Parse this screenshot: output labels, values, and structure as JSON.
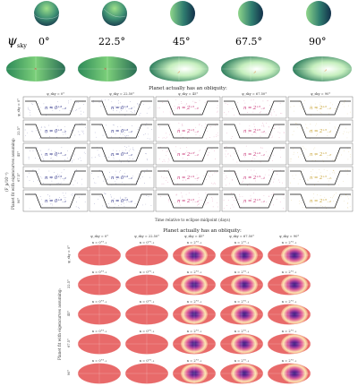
{
  "figure": {
    "psi_label": "ψ",
    "psi_subscript": "sky",
    "angle_labels": [
      "0°",
      "22.5°",
      "45°",
      "67.5°",
      "90°"
    ],
    "header_obliquity": "Planet actually has an obliquity:",
    "row_axis_label": "Planet fit with eigencurves assuming:",
    "flux_axis_label": "(F_p/10⁻³)",
    "time_axis_label": "Time relative to eclipse midpoint (days)",
    "col_headers": [
      "ψ_sky = 0°",
      "ψ_sky = 22.50°",
      "ψ_sky = 45°",
      "ψ_sky = 67.50°",
      "ψ_sky = 90°"
    ],
    "row_headers": [
      "ψ_sky = 0°",
      "22.5°",
      "45°",
      "67.5°",
      "90°"
    ],
    "lc_n_values": [
      [
        "n = 0⁺³₋₂",
        "n = 0⁺³₋₂",
        "n = 2⁺⁵₋₂",
        "n = 2⁺⁵₋₂",
        "n = 2⁺⁵₋₂"
      ],
      [
        "n = 0⁺³₋₂",
        "n = 0⁺³₋₂",
        "n = 2⁺⁵₋₂",
        "n = 2⁺⁵₋₂",
        "n = 2⁺⁵₋₂"
      ],
      [
        "n = 0⁺³₋₂",
        "n = 0⁺³₋₂",
        "n = 2⁺⁵₋₂",
        "n = 2⁺⁵₋₂",
        "n = 2⁺⁵₋₂"
      ],
      [
        "n = 0⁺³₋₂",
        "n = 0⁺³₋₂",
        "n = 2⁺⁵₋₂",
        "n = 2⁺⁵₋₂",
        "n = 2⁺⁵₋₂"
      ],
      [
        "n = 0⁺³₋₂",
        "n = 0⁺³₋₂",
        "n = 2⁺⁵₋₂",
        "n = 2⁺⁵₋₂",
        "n = 2⁺⁵₋₂"
      ]
    ],
    "map_n_values": [
      [
        "n = 0⁺³₋₂",
        "n = 0⁺³₋₂",
        "n = 2⁺⁵₋₂",
        "n = 2⁺⁵₋₂",
        "n = 2⁺⁵₋₂"
      ],
      [
        "n = 0⁺³₋₂",
        "n = 0⁺³₋₂",
        "n = 2⁺⁵₋₂",
        "n = 2⁺⁵₋₂",
        "n = 2⁺⁵₋₂"
      ],
      [
        "n = 0⁺³₋₂",
        "n = 0⁺³₋₂",
        "n = 2⁺⁵₋₂",
        "n = 2⁺⁵₋₂",
        "n = 2⁺⁵₋₂"
      ],
      [
        "n = 0⁺³₋₂",
        "n = 0⁺³₋₂",
        "n = 2⁺⁵₋₂",
        "n = 2⁺⁵₋₂",
        "n = 2⁺⁵₋₂"
      ],
      [
        "n = 0⁺³₋₂",
        "n = 0⁺³₋₂",
        "n = 2⁺⁵₋₂",
        "n = 2⁺⁵₋₂",
        "n = 2⁺⁵₋₂"
      ]
    ],
    "n_colors": [
      "#2b2f86",
      "#2b2f86",
      "#c93a7a",
      "#c93a7a",
      "#c9a53a"
    ],
    "colors": {
      "planet_dark": "#183a4d",
      "planet_mid": "#2f7a6e",
      "planet_light": "#8fd27a",
      "map_base": "#e86a6a",
      "map_hot": "#fff2c4",
      "map_core": "#3a1b8a",
      "map_ring": "#c73a7e"
    }
  }
}
